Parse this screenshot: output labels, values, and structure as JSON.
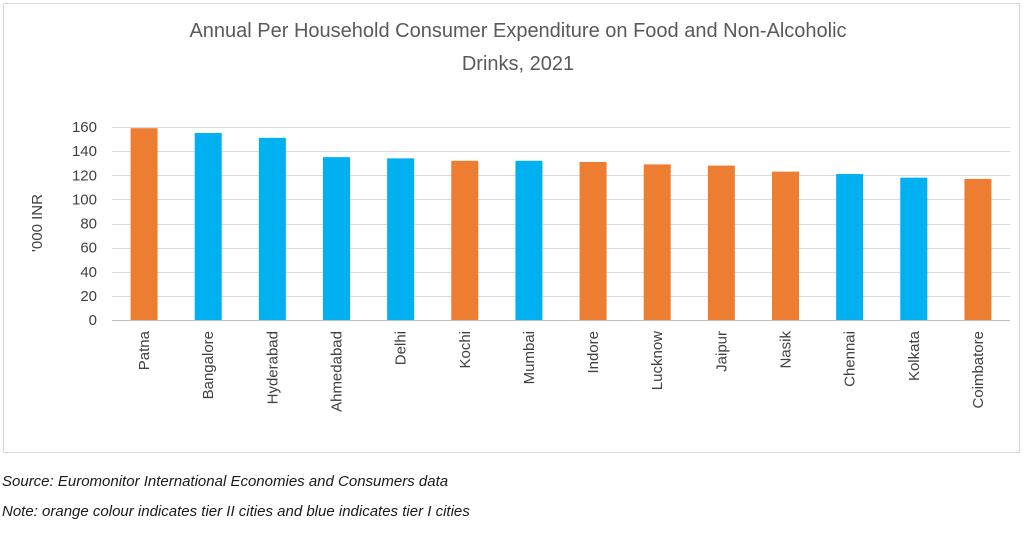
{
  "chart_data": {
    "type": "bar",
    "title_lines": [
      "Annual Per Household Consumer Expenditure on Food and Non-Alcoholic",
      "Drinks, 2021"
    ],
    "ylabel": "'000 INR",
    "xlabel": "",
    "ylim": [
      0,
      160
    ],
    "yticks": [
      0,
      20,
      40,
      60,
      80,
      100,
      120,
      140,
      160
    ],
    "grid": true,
    "categories": [
      "Patna",
      "Bangalore",
      "Hyderabad",
      "Ahmedabad",
      "Delhi",
      "Kochi",
      "Mumbai",
      "Indore",
      "Lucknow",
      "Jaipur",
      "Nasik",
      "Chennai",
      "Kolkata",
      "Coimbatore"
    ],
    "values": [
      159,
      155,
      151,
      135,
      134,
      132,
      132,
      131,
      129,
      128,
      123,
      121,
      118,
      117
    ],
    "tiers": [
      "II",
      "I",
      "I",
      "I",
      "I",
      "II",
      "I",
      "II",
      "II",
      "II",
      "II",
      "I",
      "I",
      "II"
    ]
  },
  "colors": {
    "tier_I": "#00b0f0",
    "tier_II": "#ed7d31",
    "grid": "#d9d9d9",
    "axis": "#bfbfbf"
  },
  "footnotes": {
    "source": "Source: Euromonitor International Economies and Consumers data",
    "note": "Note: orange colour indicates tier II cities and blue indicates tier I cities"
  }
}
